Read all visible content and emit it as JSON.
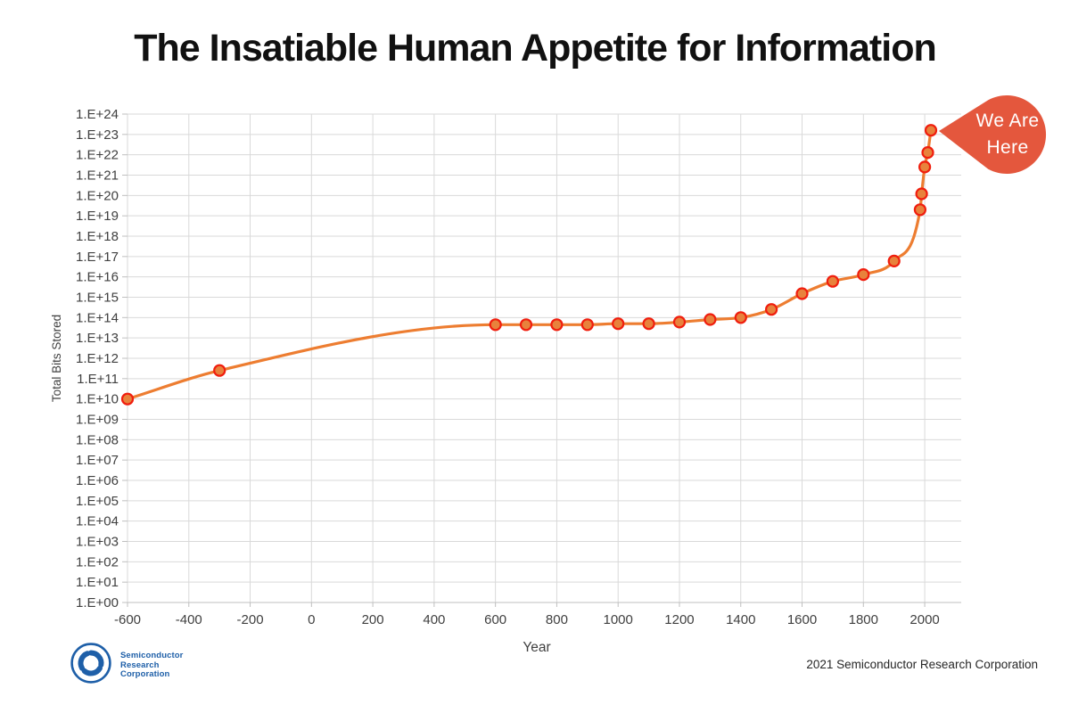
{
  "title": "The Insatiable Human Appetite for Information",
  "callout": {
    "line1": "We Are",
    "line2": "Here"
  },
  "logo": {
    "line1": "Semiconductor",
    "line2": "Research",
    "line3": "Corporation"
  },
  "footer": {
    "copyright": "2021 Semiconductor Research Corporation"
  },
  "colors": {
    "background": "#FFFFFF",
    "title_text": "#111111",
    "line": "#ED7D31",
    "marker_fill": "#E8823C",
    "marker_stroke": "#F01E0E",
    "callout": "#E4573D",
    "grid": "#D9D9D9",
    "axis": "#BFBFBF",
    "tick_label": "#404040",
    "logo_blue": "#1E5FA8"
  },
  "chart_data": {
    "type": "line",
    "title": "The Insatiable Human Appetite for Information",
    "xlabel": "Year",
    "ylabel": "Total Bits Stored",
    "grid": true,
    "legend": "none",
    "x_axis": {
      "min": -600,
      "max": 2119,
      "tick_step": 200
    },
    "y_axis": {
      "scale": "log10",
      "min_exponent": 0,
      "max_exponent": 24
    },
    "x_ticks": [
      -600,
      -400,
      -200,
      0,
      200,
      400,
      600,
      800,
      1000,
      1200,
      1400,
      1600,
      1800,
      2000
    ],
    "y_ticks": [
      "1.E+00",
      "1.E+01",
      "1.E+02",
      "1.E+03",
      "1.E+04",
      "1.E+05",
      "1.E+06",
      "1.E+07",
      "1.E+08",
      "1.E+09",
      "1.E+10",
      "1.E+11",
      "1.E+12",
      "1.E+13",
      "1.E+14",
      "1.E+15",
      "1.E+16",
      "1.E+17",
      "1.E+18",
      "1.E+19",
      "1.E+20",
      "1.E+21",
      "1.E+22",
      "1.E+23",
      "1.E+24"
    ],
    "series": [
      {
        "name": "Total Bits Stored",
        "points": [
          {
            "year": -600,
            "bits": 10000000000.0
          },
          {
            "year": -300,
            "bits": 250000000000.0
          },
          {
            "year": 600,
            "bits": 45000000000000.0
          },
          {
            "year": 700,
            "bits": 45000000000000.0
          },
          {
            "year": 800,
            "bits": 45000000000000.0
          },
          {
            "year": 900,
            "bits": 45000000000000.0
          },
          {
            "year": 1000,
            "bits": 50000000000000.0
          },
          {
            "year": 1100,
            "bits": 50000000000000.0
          },
          {
            "year": 1200,
            "bits": 60000000000000.0
          },
          {
            "year": 1300,
            "bits": 80000000000000.0
          },
          {
            "year": 1400,
            "bits": 100000000000000.0
          },
          {
            "year": 1500,
            "bits": 250000000000000.0
          },
          {
            "year": 1600,
            "bits": 1500000000000000.0
          },
          {
            "year": 1700,
            "bits": 6000000000000000.0
          },
          {
            "year": 1800,
            "bits": 1.3e+16
          },
          {
            "year": 1900,
            "bits": 6e+16
          },
          {
            "year": 1985,
            "bits": 2e+19
          },
          {
            "year": 1990,
            "bits": 1.2e+20
          },
          {
            "year": 2000,
            "bits": 2.5e+21
          },
          {
            "year": 2010,
            "bits": 1.3e+22
          },
          {
            "year": 2020,
            "bits": 1.6e+23
          }
        ]
      }
    ],
    "annotation": {
      "label": "We Are Here",
      "year": 2020,
      "bits": 1.6e+23,
      "position": "right-of-last-point"
    }
  }
}
